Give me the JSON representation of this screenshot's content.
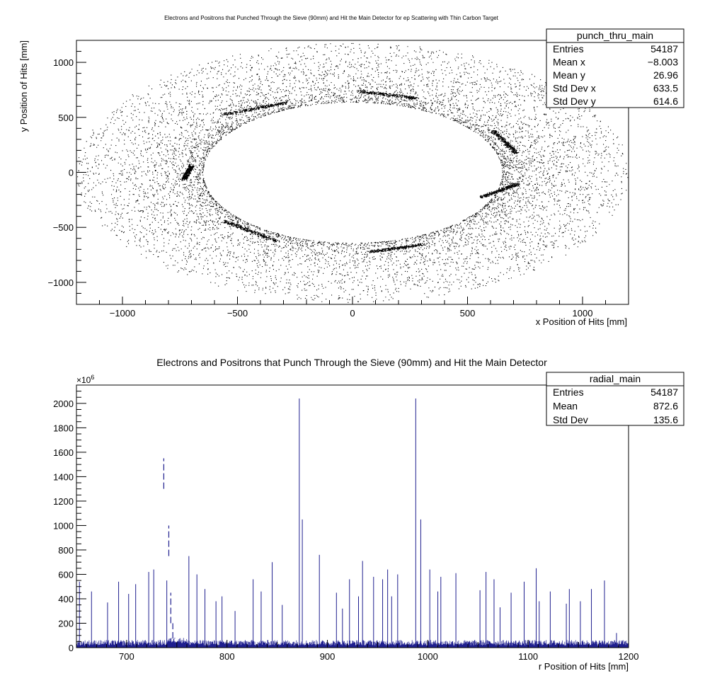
{
  "chart_data": [
    {
      "type": "scatter",
      "title": "Electrons and Positrons that Punched Through the Sieve (90mm) and Hit the Main Detector for ep Scattering with Thin Carbon Target",
      "xlabel": "x Position of Hits [mm]",
      "ylabel": "y Position of Hits [mm]",
      "xlim": [
        -1200,
        1200
      ],
      "ylim": [
        -1200,
        1200
      ],
      "xticks": [
        "−1000",
        "−500",
        "0",
        "500",
        "1000"
      ],
      "yticks": [
        "−1000",
        "−500",
        "0",
        "500",
        "1000"
      ],
      "xtick_values": [
        -1000,
        -500,
        0,
        500,
        1000
      ],
      "ytick_values": [
        -1000,
        -500,
        0,
        500,
        1000
      ],
      "distribution": {
        "shape": "elliptical ring",
        "inner_semi_axis_x": 650,
        "inner_semi_axis_y": 640,
        "outer_semi_axis_x": 1200,
        "outer_semi_axis_y": 1180,
        "dense_streaks": [
          {
            "from": [
              -560,
              530
            ],
            "to": [
              -280,
              640
            ]
          },
          {
            "from": [
              30,
              740
            ],
            "to": [
              270,
              680
            ]
          },
          {
            "from": [
              610,
              380
            ],
            "to": [
              710,
              180
            ]
          },
          {
            "from": [
              560,
              -220
            ],
            "to": [
              720,
              -100
            ]
          },
          {
            "from": [
              70,
              -720
            ],
            "to": [
              310,
              -650
            ]
          },
          {
            "from": [
              -560,
              -440
            ],
            "to": [
              -330,
              -620
            ]
          },
          {
            "from": [
              -735,
              -60
            ],
            "to": [
              -700,
              70
            ]
          }
        ]
      },
      "stats": {
        "name": "punch_thru_main",
        "rows": [
          {
            "label": "Entries",
            "value": "54187"
          },
          {
            "label": "Mean x",
            "value": "−8.003"
          },
          {
            "label": "Mean y",
            "value": "26.96"
          },
          {
            "label": "Std Dev x",
            "value": "633.5"
          },
          {
            "label": "Std Dev y",
            "value": "614.6"
          }
        ]
      },
      "grid": false
    },
    {
      "type": "histogram",
      "title": "Electrons and Positrons that Punch Through the Sieve (90mm) and Hit the Main Detector",
      "xlabel": "r Position of Hits [mm]",
      "ylabel": "",
      "y_multiplier": "×10",
      "y_multiplier_exponent": "6",
      "xlim": [
        650,
        1200
      ],
      "ylim": [
        0,
        2150
      ],
      "xticks": [
        "700",
        "800",
        "900",
        "1000",
        "1100",
        "1200"
      ],
      "xtick_values": [
        700,
        800,
        900,
        1000,
        1100,
        1200
      ],
      "yticks": [
        "0",
        "200",
        "400",
        "600",
        "800",
        "1000",
        "1200",
        "1400",
        "1600",
        "1800",
        "2000"
      ],
      "ytick_values": [
        0,
        200,
        400,
        600,
        800,
        1000,
        1200,
        1400,
        1600,
        1800,
        2000
      ],
      "baseline_level": 40,
      "peak_cluster": {
        "r": [
          737,
          742,
          744,
          746,
          748
        ],
        "values": [
          1550,
          1000,
          450,
          200,
          80
        ]
      },
      "spikes": {
        "r": [
          653,
          665,
          681,
          692,
          702,
          709,
          722,
          727,
          740,
          762,
          770,
          778,
          789,
          795,
          808,
          826,
          834,
          845,
          855,
          872,
          875,
          892,
          909,
          915,
          922,
          931,
          935,
          946,
          955,
          960,
          964,
          970,
          988,
          993,
          1002,
          1010,
          1013,
          1028,
          1052,
          1058,
          1066,
          1072,
          1083,
          1096,
          1108,
          1111,
          1122,
          1138,
          1141,
          1152,
          1163,
          1176,
          1188
        ],
        "values": [
          540,
          460,
          370,
          540,
          440,
          520,
          620,
          640,
          550,
          750,
          600,
          480,
          380,
          420,
          300,
          560,
          460,
          700,
          350,
          2040,
          1050,
          760,
          450,
          320,
          560,
          420,
          710,
          580,
          560,
          640,
          420,
          600,
          2040,
          1050,
          640,
          460,
          580,
          610,
          470,
          620,
          560,
          330,
          450,
          540,
          650,
          380,
          460,
          360,
          480,
          380,
          480,
          550,
          120
        ]
      },
      "series_color": "#1f1f8f",
      "stats": {
        "name": "radial_main",
        "rows": [
          {
            "label": "Entries",
            "value": "54187"
          },
          {
            "label": "Mean",
            "value": "872.6"
          },
          {
            "label": "Std Dev",
            "value": "135.6"
          }
        ]
      },
      "grid": false
    }
  ]
}
